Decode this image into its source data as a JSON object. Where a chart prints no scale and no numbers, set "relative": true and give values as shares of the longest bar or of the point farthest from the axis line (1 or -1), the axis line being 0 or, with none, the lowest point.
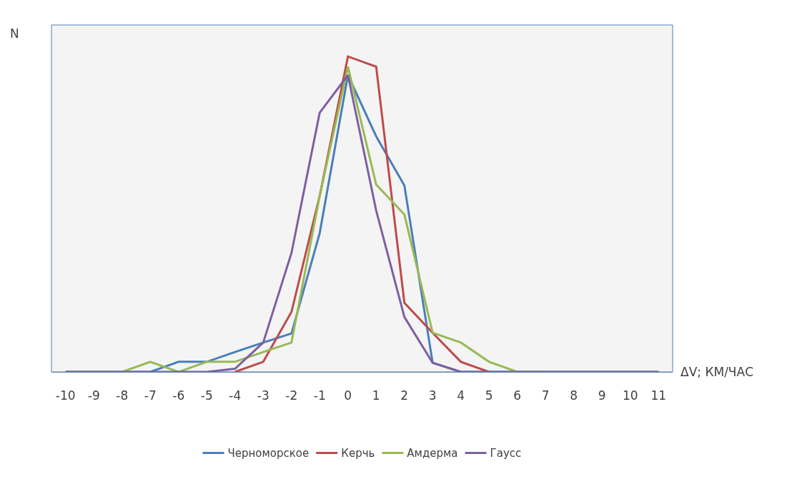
{
  "chart_data": {
    "type": "line",
    "relative": true,
    "xlabel": "ΔV; КМ/ЧАС",
    "ylabel": "N",
    "categories": [
      "-10",
      "-9",
      "-8",
      "-7",
      "-6",
      "-5",
      "-4",
      "-3",
      "-2",
      "-1",
      "0",
      "1",
      "2",
      "3",
      "4",
      "5",
      "6",
      "7",
      "8",
      "9",
      "10",
      "11"
    ],
    "series": [
      {
        "name": "Черноморское",
        "color": "#4a7ebb",
        "values": [
          0,
          0,
          0,
          0,
          0.032,
          0.032,
          0.063,
          0.093,
          0.122,
          0.44,
          0.941,
          0.747,
          0.591,
          0.029,
          0,
          0,
          0,
          0,
          0,
          0,
          0,
          0
        ]
      },
      {
        "name": "Керчь",
        "color": "#be4b48",
        "values": [
          null,
          null,
          null,
          null,
          null,
          null,
          0,
          0.032,
          0.19,
          0.558,
          1,
          0.968,
          0.219,
          0.124,
          0.032,
          0,
          null,
          null,
          null,
          null,
          null,
          null
        ]
      },
      {
        "name": "Амдерма",
        "color": "#98b954",
        "values": [
          0,
          0,
          0,
          0.032,
          0,
          0.032,
          0.032,
          0.063,
          0.093,
          0.558,
          0.968,
          0.594,
          0.499,
          0.124,
          0.093,
          0.032,
          0,
          0,
          null,
          null,
          null,
          null
        ]
      },
      {
        "name": "Гаусс",
        "color": "#7d60a0",
        "values": [
          0,
          0,
          0,
          0,
          0,
          0,
          0.01,
          0.093,
          0.377,
          0.822,
          0.941,
          0.512,
          0.174,
          0.029,
          0,
          0,
          0,
          0,
          0,
          0,
          0,
          0
        ]
      }
    ],
    "legend": "bottom",
    "grid": false,
    "marker": "none",
    "line_style": "solid"
  }
}
